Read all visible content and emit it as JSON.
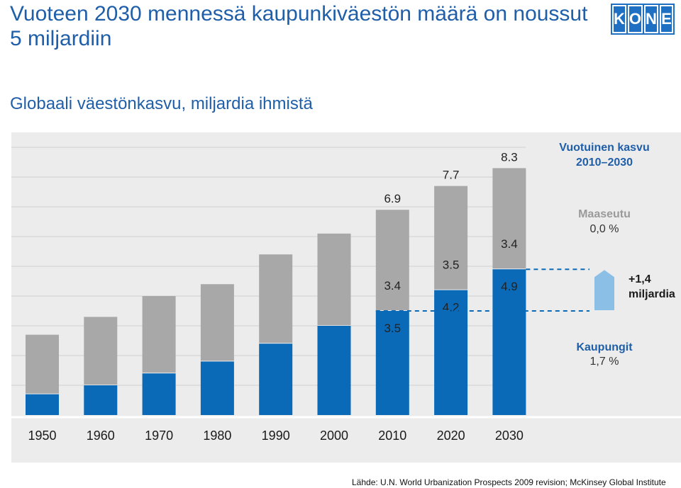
{
  "title": "Vuoteen 2030 mennessä kaupunkiväestön määrä on noussut 5 miljardiin",
  "subtitle": "Globaali väestönkasvu, miljardia ihmistä",
  "logo": {
    "letters": [
      "K",
      "O",
      "N",
      "E"
    ]
  },
  "source": "Lähde: U.N. World Urbanization Prospects 2009 revision; McKinsey Global Institute",
  "colors": {
    "urban": "#0a6ab7",
    "rural": "#a8a8a8",
    "panel": "#ececec",
    "arrow": "#8bbfe6",
    "accent_text": "#1f5ea8"
  },
  "chart_data": {
    "type": "bar",
    "stacked": true,
    "categories": [
      "1950",
      "1960",
      "1970",
      "1980",
      "1990",
      "2000",
      "2010",
      "2020",
      "2030"
    ],
    "series": [
      {
        "values": [
          0.7,
          1.0,
          1.4,
          1.8,
          2.4,
          3.0,
          3.5,
          4.2,
          4.9
        ]
      },
      {
        "values": [
          2.0,
          2.3,
          2.6,
          2.6,
          3.0,
          3.1,
          3.4,
          3.5,
          3.4
        ]
      }
    ],
    "data_labels": [
      {
        "category": "2010",
        "total": "6.9",
        "rural": "3.4",
        "urban": "3.5"
      },
      {
        "category": "2020",
        "total": "7.7",
        "rural": "3.5",
        "urban": "4.2"
      },
      {
        "category": "2030",
        "total": "8.3",
        "rural": "3.4",
        "urban": "4.9"
      }
    ],
    "ylim": [
      0,
      9
    ],
    "grid": true,
    "annotations": {
      "header_line1": "Vuotuinen kasvu",
      "header_line2": "2010–2030",
      "rural_label": "Maaseutu",
      "rural_value": "0,0 %",
      "urban_label": "Kaupungit",
      "urban_value": "1,7 %",
      "growth_line1": "+1,4",
      "growth_line2": "miljardia"
    }
  }
}
